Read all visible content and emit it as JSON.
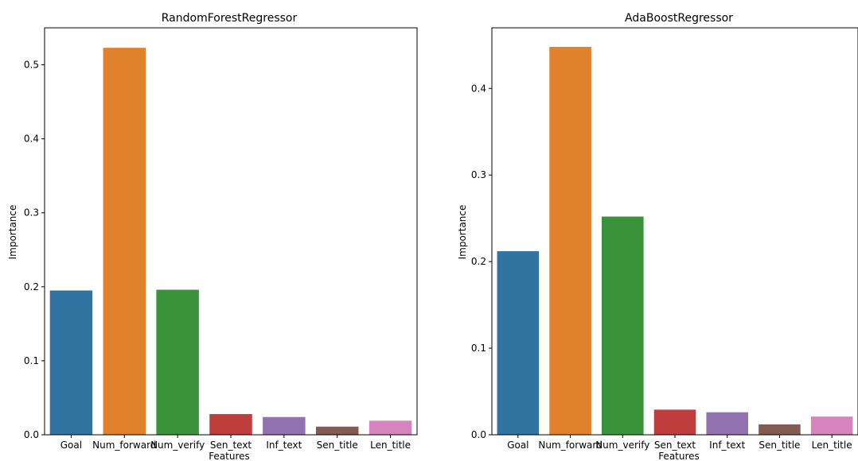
{
  "chart_data": [
    {
      "type": "bar",
      "title": "RandomForestRegressor",
      "xlabel": "Features",
      "ylabel": "Importance",
      "categories": [
        "Goal",
        "Num_forward",
        "Num_verify",
        "Sen_text",
        "Inf_text",
        "Sen_title",
        "Len_title"
      ],
      "values": [
        0.195,
        0.523,
        0.196,
        0.028,
        0.024,
        0.011,
        0.019
      ],
      "ylim": [
        0,
        0.55
      ],
      "yticks": [
        0.0,
        0.1,
        0.2,
        0.3,
        0.4,
        0.5
      ],
      "ytick_labels": [
        "0.0",
        "0.1",
        "0.2",
        "0.3",
        "0.4",
        "0.5"
      ],
      "grid": false,
      "colors": [
        "#3274a1",
        "#e1812c",
        "#3a923a",
        "#c03d3e",
        "#9372b2",
        "#845b53",
        "#d684bd"
      ]
    },
    {
      "type": "bar",
      "title": "AdaBoostRegressor",
      "xlabel": "Features",
      "ylabel": "Importance",
      "categories": [
        "Goal",
        "Num_forward",
        "Num_verify",
        "Sen_text",
        "Inf_text",
        "Sen_title",
        "Len_title"
      ],
      "values": [
        0.212,
        0.448,
        0.252,
        0.029,
        0.026,
        0.012,
        0.021
      ],
      "ylim": [
        0,
        0.47
      ],
      "yticks": [
        0.0,
        0.1,
        0.2,
        0.3,
        0.4
      ],
      "ytick_labels": [
        "0.0",
        "0.1",
        "0.2",
        "0.3",
        "0.4"
      ],
      "grid": false,
      "colors": [
        "#3274a1",
        "#e1812c",
        "#3a923a",
        "#c03d3e",
        "#9372b2",
        "#845b53",
        "#d684bd"
      ]
    }
  ]
}
